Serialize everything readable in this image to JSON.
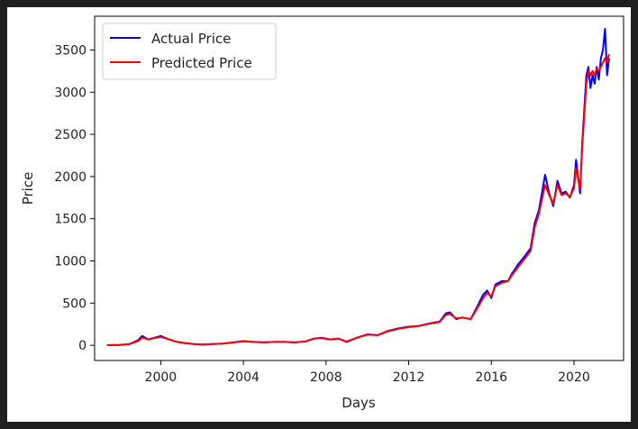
{
  "chart_data": {
    "type": "line",
    "title": "",
    "xlabel": "Days",
    "ylabel": "Price",
    "xlim": [
      1996.8,
      2022.4
    ],
    "ylim": [
      -180,
      3900
    ],
    "xticks": [
      2000,
      2004,
      2008,
      2012,
      2016,
      2020
    ],
    "xtick_labels": [
      "2000",
      "2004",
      "2008",
      "2012",
      "2016",
      "2020"
    ],
    "yticks": [
      0,
      500,
      1000,
      1500,
      2000,
      2500,
      3000,
      3500
    ],
    "ytick_labels": [
      "0",
      "500",
      "1000",
      "1500",
      "2000",
      "2500",
      "3000",
      "3500"
    ],
    "grid": false,
    "legend_position": "top-left",
    "series": [
      {
        "name": "Actual Price",
        "color": "#0000ff",
        "x": [
          1997.4,
          1998.0,
          1998.5,
          1998.9,
          1999.1,
          1999.4,
          1999.7,
          2000.0,
          2000.4,
          2000.8,
          2001.2,
          2001.6,
          2002.0,
          2002.5,
          2003.0,
          2003.5,
          2004.0,
          2004.5,
          2005.0,
          2005.5,
          2006.0,
          2006.5,
          2007.0,
          2007.4,
          2007.8,
          2008.2,
          2008.6,
          2009.0,
          2009.5,
          2010.0,
          2010.5,
          2011.0,
          2011.5,
          2012.0,
          2012.5,
          2013.0,
          2013.5,
          2013.8,
          2014.0,
          2014.3,
          2014.6,
          2015.0,
          2015.3,
          2015.6,
          2015.8,
          2016.0,
          2016.2,
          2016.5,
          2016.8,
          2017.0,
          2017.3,
          2017.6,
          2017.9,
          2018.1,
          2018.3,
          2018.6,
          2018.8,
          2019.0,
          2019.2,
          2019.4,
          2019.6,
          2019.8,
          2020.0,
          2020.1,
          2020.3,
          2020.4,
          2020.6,
          2020.7,
          2020.8,
          2020.9,
          2021.0,
          2021.1,
          2021.2,
          2021.3,
          2021.4,
          2021.5,
          2021.6,
          2021.7
        ],
        "y": [
          2,
          5,
          15,
          60,
          110,
          70,
          90,
          110,
          70,
          40,
          25,
          15,
          10,
          15,
          20,
          35,
          50,
          40,
          35,
          40,
          40,
          35,
          45,
          80,
          90,
          70,
          80,
          40,
          90,
          130,
          120,
          170,
          200,
          220,
          230,
          260,
          280,
          380,
          390,
          310,
          330,
          310,
          450,
          600,
          650,
          560,
          720,
          760,
          760,
          850,
          960,
          1050,
          1150,
          1450,
          1600,
          2020,
          1800,
          1650,
          1950,
          1800,
          1820,
          1750,
          1900,
          2200,
          1800,
          2400,
          3200,
          3300,
          3050,
          3200,
          3100,
          3300,
          3150,
          3400,
          3500,
          3750,
          3200,
          3400
        ]
      },
      {
        "name": "Predicted Price",
        "color": "#ff0000",
        "x": [
          1997.4,
          1998.0,
          1998.5,
          1998.9,
          1999.1,
          1999.4,
          1999.7,
          2000.0,
          2000.4,
          2000.8,
          2001.2,
          2001.6,
          2002.0,
          2002.5,
          2003.0,
          2003.5,
          2004.0,
          2004.5,
          2005.0,
          2005.5,
          2006.0,
          2006.5,
          2007.0,
          2007.4,
          2007.8,
          2008.2,
          2008.6,
          2009.0,
          2009.5,
          2010.0,
          2010.5,
          2011.0,
          2011.5,
          2012.0,
          2012.5,
          2013.0,
          2013.5,
          2013.8,
          2014.0,
          2014.3,
          2014.6,
          2015.0,
          2015.3,
          2015.6,
          2015.8,
          2016.0,
          2016.2,
          2016.5,
          2016.8,
          2017.0,
          2017.3,
          2017.6,
          2017.9,
          2018.1,
          2018.3,
          2018.6,
          2018.8,
          2019.0,
          2019.2,
          2019.4,
          2019.6,
          2019.8,
          2020.0,
          2020.1,
          2020.3,
          2020.4,
          2020.6,
          2020.7,
          2020.8,
          2020.9,
          2021.0,
          2021.1,
          2021.2,
          2021.3,
          2021.4,
          2021.5,
          2021.6,
          2021.7
        ],
        "y": [
          2,
          5,
          15,
          50,
          90,
          70,
          85,
          100,
          70,
          40,
          25,
          15,
          10,
          15,
          20,
          33,
          48,
          40,
          35,
          40,
          40,
          35,
          45,
          78,
          85,
          70,
          78,
          45,
          90,
          125,
          120,
          165,
          195,
          215,
          230,
          255,
          275,
          360,
          370,
          320,
          330,
          310,
          430,
          560,
          620,
          580,
          700,
          740,
          760,
          830,
          930,
          1020,
          1120,
          1400,
          1560,
          1900,
          1780,
          1680,
          1900,
          1780,
          1800,
          1760,
          1860,
          2100,
          1850,
          2350,
          3100,
          3250,
          3200,
          3250,
          3200,
          3280,
          3250,
          3300,
          3350,
          3400,
          3350,
          3450
        ]
      }
    ]
  }
}
